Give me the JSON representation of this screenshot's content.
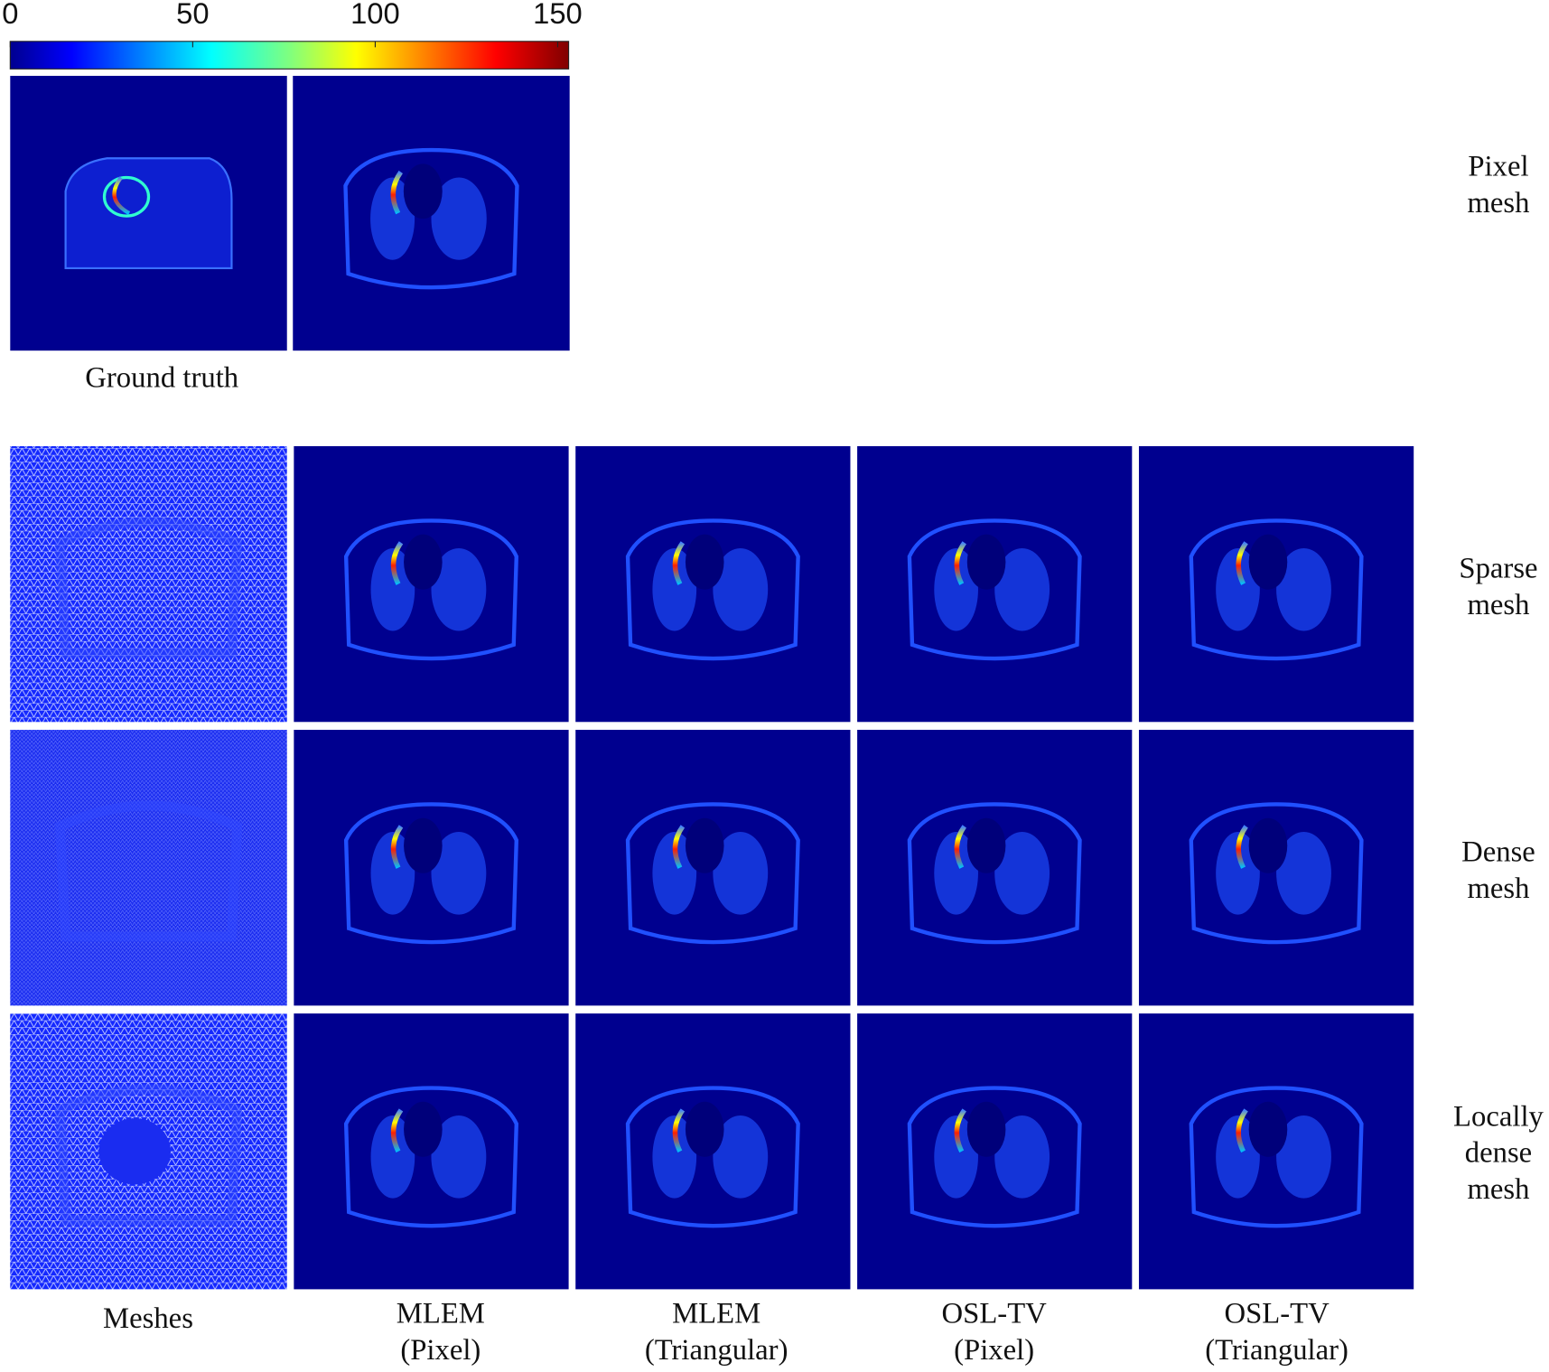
{
  "colorbar": {
    "lim": [
      0,
      153
    ],
    "ticks": [
      0,
      50,
      100,
      150
    ]
  },
  "ground_truth_label": "Ground truth",
  "row_labels": [
    [
      "Pixel",
      "mesh"
    ],
    [
      "Sparse",
      "mesh"
    ],
    [
      "Dense",
      "mesh"
    ],
    [
      "Locally",
      "dense",
      "mesh"
    ]
  ],
  "column_labels": [
    [
      "Meshes"
    ],
    [
      "MLEM",
      "(Pixel)"
    ],
    [
      "MLEM",
      "(Triangular)"
    ],
    [
      "OSL-TV",
      "(Pixel)"
    ],
    [
      "OSL-TV",
      "(Triangular)"
    ]
  ]
}
